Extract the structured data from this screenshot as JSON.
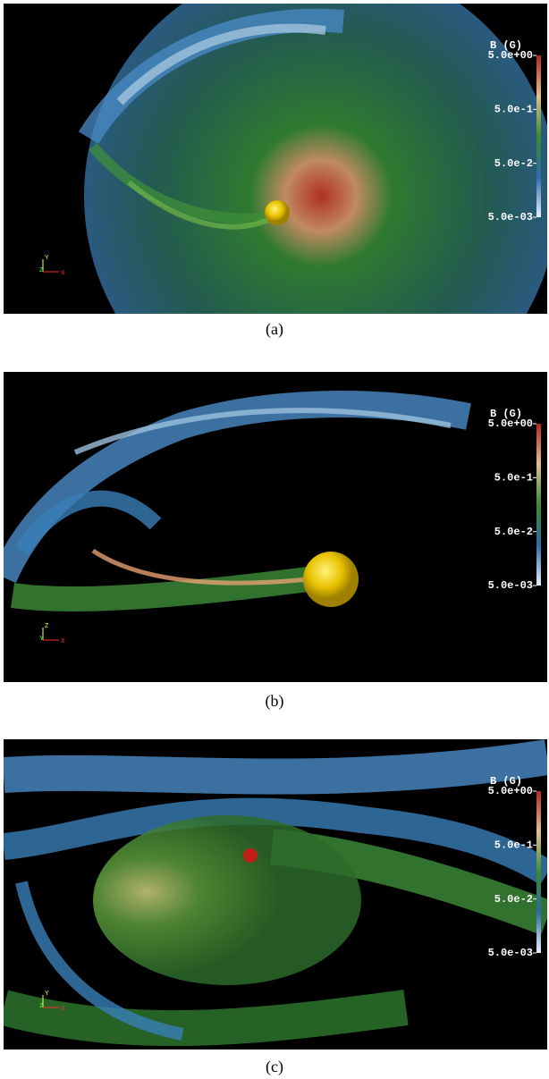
{
  "panels": [
    {
      "caption": "(a)",
      "colorbar": {
        "title": "B (G)",
        "ticks": [
          "5.0e+00",
          "5.0e-1",
          "5.0e-2",
          "5.0e-03"
        ]
      },
      "axes": {
        "y": "Y",
        "z": "Z",
        "x": "X"
      }
    },
    {
      "caption": "(b)",
      "colorbar": {
        "title": "B (G)",
        "ticks": [
          "5.0e+00",
          "5.0e-1",
          "5.0e-2",
          "5.0e-03"
        ]
      },
      "axes": {
        "y": "Z",
        "z": "Y",
        "x": "X"
      }
    },
    {
      "caption": "(c)",
      "colorbar": {
        "title": "B (G)",
        "ticks": [
          "5.0e+00",
          "5.0e-1",
          "5.0e-2",
          "5.0e-03"
        ]
      },
      "axes": {
        "y": "Y",
        "z": "Z",
        "x": "X"
      }
    }
  ]
}
